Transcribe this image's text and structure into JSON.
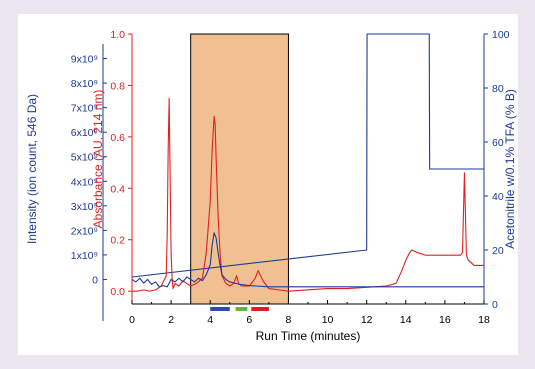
{
  "chart_data": {
    "type": "line",
    "title": "",
    "x_axis": {
      "label": "Run Time (minutes)",
      "range": [
        0,
        18
      ],
      "ticks": [
        0,
        2,
        4,
        6,
        8,
        10,
        12,
        14,
        16,
        18
      ]
    },
    "y_axes": [
      {
        "id": "ion",
        "label": "Intensity (ion count, 546 Da)",
        "color": "#1f3a93",
        "range": [
          -1,
          10
        ],
        "ticks": [
          {
            "value": 0,
            "label": "0"
          },
          {
            "value": 1,
            "label": "1x10⁹"
          },
          {
            "value": 2,
            "label": "2x10⁹"
          },
          {
            "value": 3,
            "label": "3x10⁹"
          },
          {
            "value": 4,
            "label": "4x10⁹"
          },
          {
            "value": 5,
            "label": "5x10⁹"
          },
          {
            "value": 6,
            "label": "6x10⁹"
          },
          {
            "value": 7,
            "label": "7x10⁹"
          },
          {
            "value": 8,
            "label": "8x10⁹"
          },
          {
            "value": 9,
            "label": "9x10⁹"
          }
        ]
      },
      {
        "id": "abs",
        "label": "Absorbance (AU, 214 nm)",
        "color": "#e02020",
        "range": [
          -0.05,
          1.0
        ],
        "ticks": [
          {
            "value": 0.0,
            "label": "0.0"
          },
          {
            "value": 0.2,
            "label": "0.2"
          },
          {
            "value": 0.4,
            "label": "0.4"
          },
          {
            "value": 0.6,
            "label": "0.6"
          },
          {
            "value": 0.8,
            "label": "0.8"
          },
          {
            "value": 1.0,
            "label": "1.0"
          }
        ]
      },
      {
        "id": "acn",
        "label": "Acetonitrile w/0.1% TFA (% B)",
        "color": "#1f3a93",
        "range": [
          0,
          100
        ],
        "ticks": [
          {
            "value": 0,
            "label": "0"
          },
          {
            "value": 20,
            "label": "20"
          },
          {
            "value": 40,
            "label": "40"
          },
          {
            "value": 60,
            "label": "60"
          },
          {
            "value": 80,
            "label": "80"
          },
          {
            "value": 100,
            "label": "100"
          }
        ]
      }
    ],
    "highlight_region": {
      "x_start": 3,
      "x_end": 8,
      "color": "#f0c090"
    },
    "fraction_markers": [
      {
        "x_start": 4.0,
        "x_end": 5.0,
        "color": "#2b4fa8"
      },
      {
        "x_start": 5.3,
        "x_end": 5.9,
        "color": "#6ab040"
      },
      {
        "x_start": 6.1,
        "x_end": 7.0,
        "color": "#e02020"
      }
    ],
    "series": [
      {
        "axis": "acn",
        "color": "#1f3a93",
        "x": [
          0,
          12,
          12.02,
          15.2,
          15.22,
          18
        ],
        "y": [
          10,
          20,
          100,
          100,
          50,
          50
        ]
      },
      {
        "axis": "abs",
        "color": "#e02020",
        "x": [
          0,
          0.3,
          0.6,
          0.9,
          1.2,
          1.5,
          1.75,
          1.8,
          1.85,
          1.9,
          1.95,
          2.0,
          2.05,
          2.1,
          2.2,
          2.4,
          2.6,
          2.8,
          3.0,
          3.3,
          3.6,
          3.8,
          4.0,
          4.1,
          4.2,
          4.25,
          4.3,
          4.4,
          4.5,
          4.6,
          4.8,
          5.0,
          5.2,
          5.35,
          5.45,
          5.6,
          6.0,
          6.3,
          6.45,
          6.7,
          7.0,
          7.5,
          8.0,
          9.0,
          10.0,
          11.0,
          12.0,
          13.0,
          13.5,
          13.8,
          14.0,
          14.2,
          14.3,
          14.6,
          15.0,
          16.0,
          16.8,
          16.9,
          17.0,
          17.05,
          17.1,
          17.2,
          17.5,
          18.0
        ],
        "y": [
          0.0,
          0.0,
          0.005,
          0.0,
          0.005,
          0.02,
          0.06,
          0.22,
          0.55,
          0.75,
          0.45,
          0.15,
          0.05,
          0.01,
          0.03,
          0.02,
          0.04,
          0.03,
          0.02,
          0.03,
          0.05,
          0.15,
          0.35,
          0.55,
          0.68,
          0.65,
          0.52,
          0.3,
          0.15,
          0.06,
          0.03,
          0.02,
          0.03,
          0.06,
          0.03,
          0.02,
          0.02,
          0.05,
          0.08,
          0.04,
          0.01,
          0.005,
          0.0,
          0.005,
          0.01,
          0.01,
          0.015,
          0.02,
          0.03,
          0.08,
          0.12,
          0.15,
          0.16,
          0.15,
          0.14,
          0.14,
          0.14,
          0.15,
          0.46,
          0.3,
          0.14,
          0.12,
          0.1,
          0.1
        ]
      },
      {
        "axis": "ion",
        "color": "#1f3a93",
        "x": [
          0,
          0.2,
          0.4,
          0.6,
          0.8,
          1.0,
          1.2,
          1.4,
          1.6,
          1.8,
          2.0,
          2.2,
          2.4,
          2.6,
          2.8,
          3.0,
          3.2,
          3.4,
          3.6,
          3.8,
          4.0,
          4.1,
          4.2,
          4.3,
          4.4,
          4.5,
          4.6,
          4.8,
          5.0,
          5.5,
          6.0,
          7.0,
          8.0,
          10.0,
          12.0,
          14.0,
          16.0,
          18.0
        ],
        "y": [
          0.0,
          -0.1,
          0.05,
          -0.15,
          0.0,
          -0.2,
          -0.1,
          -0.3,
          -0.25,
          -0.3,
          0.0,
          -0.1,
          0.05,
          -0.1,
          0.1,
          0.0,
          -0.1,
          0.05,
          -0.05,
          0.2,
          0.6,
          1.4,
          1.9,
          1.7,
          1.1,
          0.6,
          0.2,
          0.0,
          -0.1,
          -0.2,
          -0.25,
          -0.3,
          -0.3,
          -0.3,
          -0.3,
          -0.3,
          -0.3,
          -0.3
        ]
      }
    ]
  }
}
